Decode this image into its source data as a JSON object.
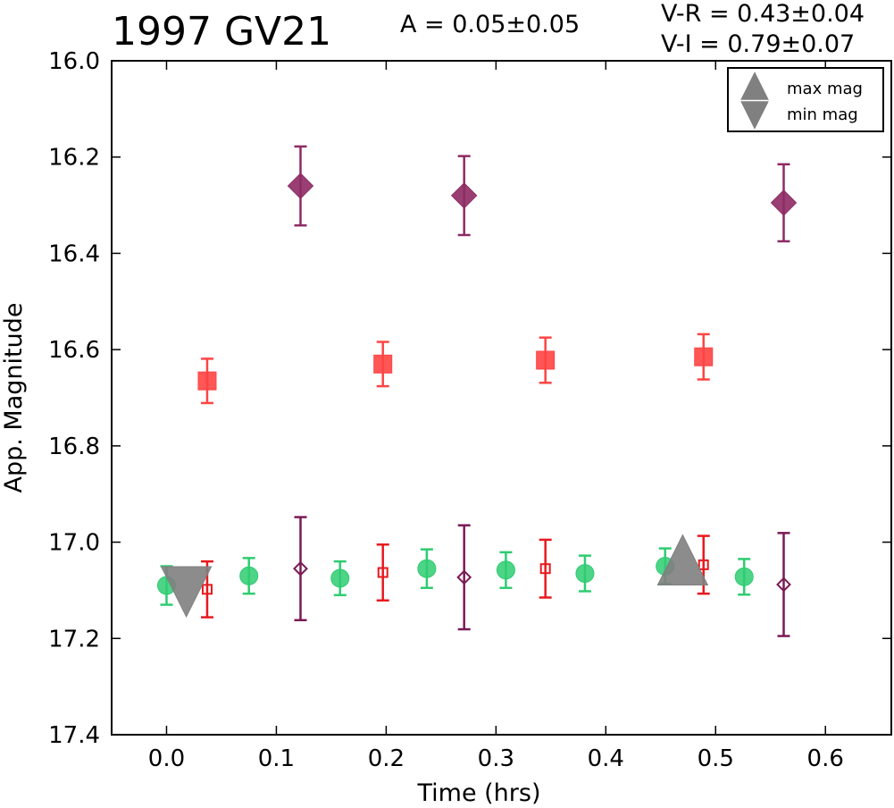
{
  "chart_data": {
    "type": "scatter",
    "title": "1997 GV21",
    "amplitude_text": "A  = 0.05±0.05",
    "color_text": [
      "V-R = 0.43±0.04",
      "V-I  = 0.79±0.07"
    ],
    "xlabel": "Time (hrs)",
    "ylabel": "App. Magnitude",
    "xlim": [
      -0.05,
      0.66
    ],
    "ylim": [
      16.0,
      17.4
    ],
    "y_inverted": true,
    "x_ticks": [
      "0.0",
      "0.1",
      "0.2",
      "0.3",
      "0.4",
      "0.5",
      "0.6"
    ],
    "y_ticks": [
      "16.0",
      "16.2",
      "16.4",
      "16.6",
      "16.8",
      "17.0",
      "17.2",
      "17.4"
    ],
    "grid": false,
    "legend_position": "top-right",
    "legend": [
      {
        "label": "max mag",
        "marker": "triangle-up",
        "color": "#808080"
      },
      {
        "label": "min mag",
        "marker": "triangle-down",
        "color": "#808080"
      }
    ],
    "series": [
      {
        "marker": "circle",
        "filled": true,
        "color": "#2ecc71",
        "points": [
          [
            0.0,
            17.09,
            0.04
          ],
          [
            0.075,
            17.07,
            0.037
          ],
          [
            0.158,
            17.075,
            0.035
          ],
          [
            0.237,
            17.055,
            0.04
          ],
          [
            0.309,
            17.058,
            0.037
          ],
          [
            0.381,
            17.065,
            0.037
          ],
          [
            0.454,
            17.05,
            0.037
          ],
          [
            0.526,
            17.072,
            0.037
          ]
        ]
      },
      {
        "marker": "square",
        "filled": false,
        "color": "#e8191e",
        "points": [
          [
            0.037,
            17.098,
            0.058
          ],
          [
            0.197,
            17.063,
            0.058
          ],
          [
            0.345,
            17.055,
            0.06
          ],
          [
            0.489,
            17.047,
            0.06
          ]
        ]
      },
      {
        "marker": "diamond",
        "filled": false,
        "color": "#7b1a55",
        "points": [
          [
            0.122,
            17.055,
            0.107
          ],
          [
            0.271,
            17.073,
            0.108
          ],
          [
            0.562,
            17.088,
            0.107
          ]
        ]
      },
      {
        "marker": "square",
        "filled": true,
        "color": "#ff4444",
        "points": [
          [
            0.037,
            16.665,
            0.046
          ],
          [
            0.197,
            16.63,
            0.046
          ],
          [
            0.345,
            16.622,
            0.047
          ],
          [
            0.489,
            16.615,
            0.047
          ]
        ]
      },
      {
        "marker": "diamond",
        "filled": true,
        "color": "#8e2a64",
        "points": [
          [
            0.122,
            16.26,
            0.082
          ],
          [
            0.271,
            16.28,
            0.082
          ],
          [
            0.562,
            16.295,
            0.08
          ]
        ]
      },
      {
        "marker": "triangle-down",
        "filled": true,
        "color": "#808080",
        "points": [
          [
            0.018,
            17.09,
            0
          ]
        ]
      },
      {
        "marker": "triangle-up",
        "filled": true,
        "color": "#808080",
        "points": [
          [
            0.47,
            17.05,
            0
          ]
        ]
      }
    ]
  }
}
